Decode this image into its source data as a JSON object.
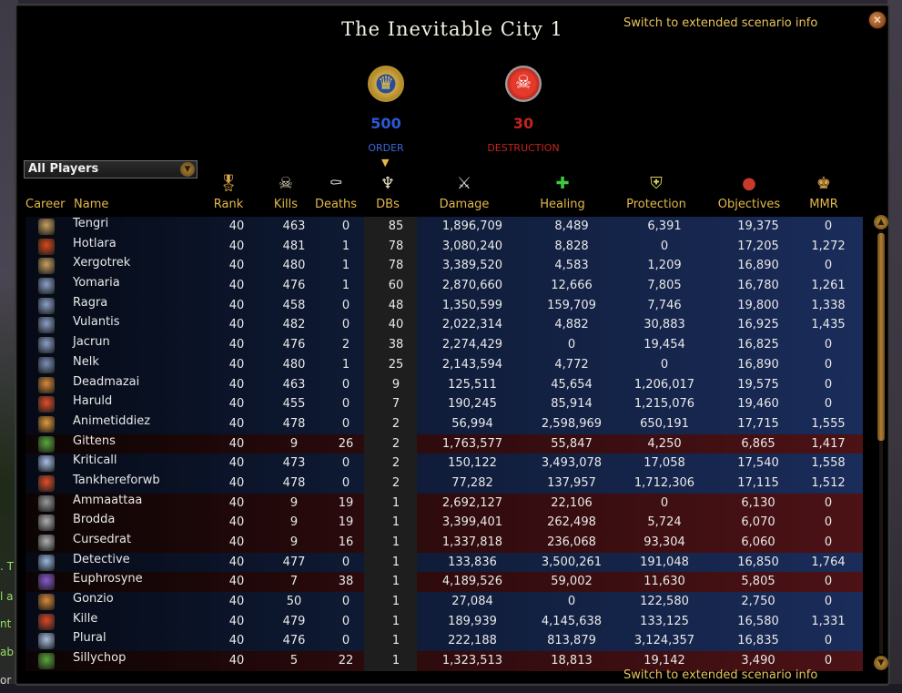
{
  "window": {
    "title": "The Inevitable City 1",
    "extended_link_top": "Switch to extended scenario info",
    "extended_link_bottom": "Switch to extended scenario info",
    "close_glyph": "✕"
  },
  "factions": {
    "order": {
      "score": "500",
      "name": "ORDER",
      "color": "#2b5ad6",
      "emblem_icon": "order-griffon-icon"
    },
    "destruction": {
      "score": "30",
      "name": "DESTRUCTION",
      "color": "#c3251c",
      "emblem_icon": "destruction-skull-icon"
    }
  },
  "filter": {
    "selected": "All Players"
  },
  "columns": {
    "career": "Career",
    "name": "Name",
    "rank": "Rank",
    "kills": "Kills",
    "deaths": "Deaths",
    "dbs": "DBs",
    "damage": "Damage",
    "healing": "Healing",
    "protection": "Protection",
    "objectives": "Objectives",
    "mmr": "MMR"
  },
  "players": [
    {
      "name": "Tengri",
      "rank": "40",
      "kills": "463",
      "deaths": "0",
      "dbs": "85",
      "damage": "1,896,709",
      "healing": "8,489",
      "protection": "6,391",
      "objectives": "19,375",
      "mmr": "0",
      "side": "order",
      "career_color": "#c8a060"
    },
    {
      "name": "Hotlara",
      "rank": "40",
      "kills": "481",
      "deaths": "1",
      "dbs": "78",
      "damage": "3,080,240",
      "healing": "8,828",
      "protection": "0",
      "objectives": "17,205",
      "mmr": "1,272",
      "side": "order",
      "career_color": "#d84a1a"
    },
    {
      "name": "Xergotrek",
      "rank": "40",
      "kills": "480",
      "deaths": "1",
      "dbs": "78",
      "damage": "3,389,520",
      "healing": "4,583",
      "protection": "1,209",
      "objectives": "16,890",
      "mmr": "0",
      "side": "order",
      "career_color": "#c8a060"
    },
    {
      "name": "Yomaria",
      "rank": "40",
      "kills": "476",
      "deaths": "1",
      "dbs": "60",
      "damage": "2,870,660",
      "healing": "12,666",
      "protection": "7,805",
      "objectives": "16,780",
      "mmr": "1,261",
      "side": "order",
      "career_color": "#8aa0c8"
    },
    {
      "name": "Ragra",
      "rank": "40",
      "kills": "458",
      "deaths": "0",
      "dbs": "48",
      "damage": "1,350,599",
      "healing": "159,709",
      "protection": "7,746",
      "objectives": "19,800",
      "mmr": "1,338",
      "side": "order",
      "career_color": "#8aa0c8"
    },
    {
      "name": "Vulantis",
      "rank": "40",
      "kills": "482",
      "deaths": "0",
      "dbs": "40",
      "damage": "2,022,314",
      "healing": "4,882",
      "protection": "30,883",
      "objectives": "16,925",
      "mmr": "1,435",
      "side": "order",
      "career_color": "#8aa0c8"
    },
    {
      "name": "Jacrun",
      "rank": "40",
      "kills": "476",
      "deaths": "2",
      "dbs": "38",
      "damage": "2,274,429",
      "healing": "0",
      "protection": "19,454",
      "objectives": "16,825",
      "mmr": "0",
      "side": "order",
      "career_color": "#8aa0c8"
    },
    {
      "name": "Nelk",
      "rank": "40",
      "kills": "480",
      "deaths": "1",
      "dbs": "25",
      "damage": "2,143,594",
      "healing": "4,772",
      "protection": "0",
      "objectives": "16,890",
      "mmr": "0",
      "side": "order",
      "career_color": "#7a90b8"
    },
    {
      "name": "Deadmazai",
      "rank": "40",
      "kills": "463",
      "deaths": "0",
      "dbs": "9",
      "damage": "125,511",
      "healing": "45,654",
      "protection": "1,206,017",
      "objectives": "19,575",
      "mmr": "0",
      "side": "order",
      "career_color": "#d88a3a"
    },
    {
      "name": "Haruld",
      "rank": "40",
      "kills": "455",
      "deaths": "0",
      "dbs": "7",
      "damage": "190,245",
      "healing": "85,914",
      "protection": "1,215,076",
      "objectives": "19,460",
      "mmr": "0",
      "side": "order",
      "career_color": "#e0502a"
    },
    {
      "name": "Animetiddiez",
      "rank": "40",
      "kills": "478",
      "deaths": "0",
      "dbs": "2",
      "damage": "56,994",
      "healing": "2,598,969",
      "protection": "650,191",
      "objectives": "17,715",
      "mmr": "1,555",
      "side": "order",
      "career_color": "#e09a3a"
    },
    {
      "name": "Gittens",
      "rank": "40",
      "kills": "9",
      "deaths": "26",
      "dbs": "2",
      "damage": "1,763,577",
      "healing": "55,847",
      "protection": "4,250",
      "objectives": "6,865",
      "mmr": "1,417",
      "side": "destruction",
      "career_color": "#5aa83a"
    },
    {
      "name": "Kriticall",
      "rank": "40",
      "kills": "473",
      "deaths": "0",
      "dbs": "2",
      "damage": "150,122",
      "healing": "3,493,078",
      "protection": "17,058",
      "objectives": "17,540",
      "mmr": "1,558",
      "side": "order",
      "career_color": "#a8c0e8"
    },
    {
      "name": "Tankhereforwb",
      "rank": "40",
      "kills": "478",
      "deaths": "0",
      "dbs": "2",
      "damage": "77,282",
      "healing": "137,957",
      "protection": "1,712,306",
      "objectives": "17,115",
      "mmr": "1,512",
      "side": "order",
      "career_color": "#e0502a"
    },
    {
      "name": "Ammaattaa",
      "rank": "40",
      "kills": "9",
      "deaths": "19",
      "dbs": "1",
      "damage": "2,692,127",
      "healing": "22,106",
      "protection": "0",
      "objectives": "6,130",
      "mmr": "0",
      "side": "destruction",
      "career_color": "#9a9a9a"
    },
    {
      "name": "Brodda",
      "rank": "40",
      "kills": "9",
      "deaths": "19",
      "dbs": "1",
      "damage": "3,399,401",
      "healing": "262,498",
      "protection": "5,724",
      "objectives": "6,070",
      "mmr": "0",
      "side": "destruction",
      "career_color": "#b0b0b0"
    },
    {
      "name": "Cursedrat",
      "rank": "40",
      "kills": "9",
      "deaths": "16",
      "dbs": "1",
      "damage": "1,337,818",
      "healing": "236,068",
      "protection": "93,304",
      "objectives": "6,060",
      "mmr": "0",
      "side": "destruction",
      "career_color": "#b0b0b0"
    },
    {
      "name": "Detective",
      "rank": "40",
      "kills": "477",
      "deaths": "0",
      "dbs": "1",
      "damage": "133,836",
      "healing": "3,500,261",
      "protection": "191,048",
      "objectives": "16,850",
      "mmr": "1,764",
      "side": "order",
      "career_color": "#9ab8e0"
    },
    {
      "name": "Euphrosyne",
      "rank": "40",
      "kills": "7",
      "deaths": "38",
      "dbs": "1",
      "damage": "4,189,526",
      "healing": "59,002",
      "protection": "11,630",
      "objectives": "5,805",
      "mmr": "0",
      "side": "destruction",
      "career_color": "#8a5ad0"
    },
    {
      "name": "Gonzio",
      "rank": "40",
      "kills": "50",
      "deaths": "0",
      "dbs": "1",
      "damage": "27,084",
      "healing": "0",
      "protection": "122,580",
      "objectives": "2,750",
      "mmr": "0",
      "side": "order",
      "career_color": "#d88a3a"
    },
    {
      "name": "Kille",
      "rank": "40",
      "kills": "479",
      "deaths": "0",
      "dbs": "1",
      "damage": "189,939",
      "healing": "4,145,638",
      "protection": "133,125",
      "objectives": "16,580",
      "mmr": "1,331",
      "side": "order",
      "career_color": "#d84a2a"
    },
    {
      "name": "Plural",
      "rank": "40",
      "kills": "476",
      "deaths": "0",
      "dbs": "1",
      "damage": "222,188",
      "healing": "813,879",
      "protection": "3,124,357",
      "objectives": "16,835",
      "mmr": "0",
      "side": "order",
      "career_color": "#a8c0e0"
    },
    {
      "name": "Sillychop",
      "rank": "40",
      "kills": "5",
      "deaths": "22",
      "dbs": "1",
      "damage": "1,323,513",
      "healing": "18,813",
      "protection": "19,142",
      "objectives": "3,490",
      "mmr": "0",
      "side": "destruction",
      "career_color": "#5aa83a"
    }
  ],
  "background": {
    "chat_fragments": [
      ". T",
      "l a",
      "nt",
      "abl",
      "or"
    ]
  }
}
